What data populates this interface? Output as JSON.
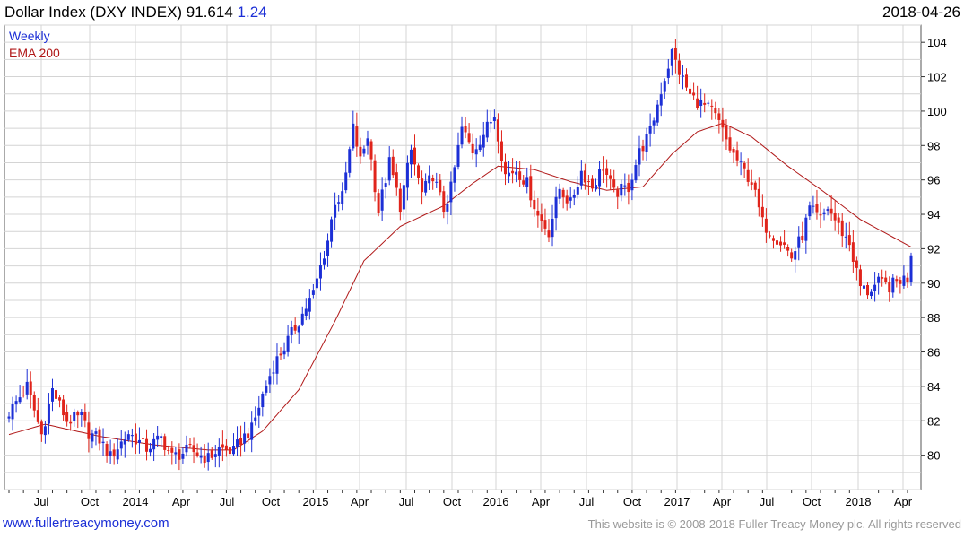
{
  "header": {
    "title": "Dollar Index (DXY INDEX) 91.614",
    "change": "1.24",
    "date": "2018-04-26"
  },
  "footer": {
    "site": "www.fullertreacymoney.com",
    "copyright": "This website is © 2008-2018 Fuller Treacy Money plc. All rights reserved"
  },
  "colors": {
    "up": "#1c2fd6",
    "down": "#e0241b",
    "ema": "#b01818",
    "grid": "#d4d4d4"
  },
  "chart_data": {
    "type": "candlestick",
    "frequency": "Weekly",
    "legend": [
      {
        "label": "Weekly",
        "color": "#1c2fd6"
      },
      {
        "label": "EMA 200",
        "color": "#b01818"
      }
    ],
    "legend_position": "top-left",
    "grid": true,
    "y_axis": {
      "side": "right",
      "range": [
        78,
        105
      ],
      "ticks": [
        80,
        82,
        84,
        86,
        88,
        90,
        92,
        94,
        96,
        98,
        100,
        102,
        104
      ]
    },
    "x_axis": {
      "ticks": [
        "Jul",
        "Oct",
        "2014",
        "Apr",
        "Jul",
        "Oct",
        "2015",
        "Apr",
        "Jul",
        "Oct",
        "2016",
        "Apr",
        "Jul",
        "Oct",
        "2017",
        "Apr",
        "Jul",
        "Oct",
        "2018",
        "Apr"
      ]
    },
    "weeks": 250,
    "close_anchors": [
      [
        0,
        82.5
      ],
      [
        5,
        84.0
      ],
      [
        9,
        81.2
      ],
      [
        12,
        83.8
      ],
      [
        16,
        82.0
      ],
      [
        20,
        82.2
      ],
      [
        22,
        81.3
      ],
      [
        25,
        80.9
      ],
      [
        28,
        79.9
      ],
      [
        33,
        81.3
      ],
      [
        38,
        80.4
      ],
      [
        42,
        81.0
      ],
      [
        45,
        79.9
      ],
      [
        50,
        80.3
      ],
      [
        55,
        79.8
      ],
      [
        58,
        80.4
      ],
      [
        62,
        80.2
      ],
      [
        64,
        80.9
      ],
      [
        67,
        81.5
      ],
      [
        70,
        83.5
      ],
      [
        73,
        85.2
      ],
      [
        76,
        86.3
      ],
      [
        80,
        87.8
      ],
      [
        84,
        89.4
      ],
      [
        88,
        92.5
      ],
      [
        90,
        94.8
      ],
      [
        92,
        95.0
      ],
      [
        95,
        99.0
      ],
      [
        97,
        97.1
      ],
      [
        99,
        98.6
      ],
      [
        102,
        94.2
      ],
      [
        105,
        97.0
      ],
      [
        108,
        94.5
      ],
      [
        111,
        97.7
      ],
      [
        114,
        95.2
      ],
      [
        117,
        96.3
      ],
      [
        120,
        94.3
      ],
      [
        122,
        95.5
      ],
      [
        125,
        99.0
      ],
      [
        128,
        97.7
      ],
      [
        131,
        98.7
      ],
      [
        134,
        99.8
      ],
      [
        137,
        96.3
      ],
      [
        140,
        96.6
      ],
      [
        143,
        95.8
      ],
      [
        146,
        93.9
      ],
      [
        149,
        93.0
      ],
      [
        152,
        95.5
      ],
      [
        155,
        94.6
      ],
      [
        158,
        96.5
      ],
      [
        161,
        95.6
      ],
      [
        164,
        96.8
      ],
      [
        167,
        95.2
      ],
      [
        171,
        95.6
      ],
      [
        174,
        97.6
      ],
      [
        177,
        98.8
      ],
      [
        180,
        101.2
      ],
      [
        183,
        103.4
      ],
      [
        185,
        102.3
      ],
      [
        188,
        100.9
      ],
      [
        191,
        100.4
      ],
      [
        194,
        100.0
      ],
      [
        196,
        99.3
      ],
      [
        199,
        97.8
      ],
      [
        202,
        96.8
      ],
      [
        205,
        95.9
      ],
      [
        208,
        93.5
      ],
      [
        211,
        92.8
      ],
      [
        214,
        92.2
      ],
      [
        216,
        91.5
      ],
      [
        219,
        92.8
      ],
      [
        221,
        94.3
      ],
      [
        224,
        93.7
      ],
      [
        226,
        94.4
      ],
      [
        229,
        93.3
      ],
      [
        232,
        92.3
      ],
      [
        235,
        89.8
      ],
      [
        237,
        89.5
      ],
      [
        240,
        90.0
      ],
      [
        243,
        89.8
      ],
      [
        246,
        90.2
      ],
      [
        248,
        90.3
      ],
      [
        249,
        91.6
      ]
    ],
    "ema200_anchors": [
      [
        0,
        81.2
      ],
      [
        10,
        81.8
      ],
      [
        25,
        81.1
      ],
      [
        40,
        80.6
      ],
      [
        55,
        80.3
      ],
      [
        62,
        80.3
      ],
      [
        70,
        81.4
      ],
      [
        80,
        83.8
      ],
      [
        90,
        87.8
      ],
      [
        98,
        91.3
      ],
      [
        108,
        93.3
      ],
      [
        120,
        94.5
      ],
      [
        128,
        95.8
      ],
      [
        135,
        96.8
      ],
      [
        145,
        96.6
      ],
      [
        155,
        95.9
      ],
      [
        165,
        95.4
      ],
      [
        175,
        95.6
      ],
      [
        183,
        97.5
      ],
      [
        190,
        98.8
      ],
      [
        197,
        99.3
      ],
      [
        205,
        98.5
      ],
      [
        215,
        96.8
      ],
      [
        225,
        95.3
      ],
      [
        235,
        93.7
      ],
      [
        249,
        92.1
      ]
    ],
    "last_close": 91.614,
    "last_change": 1.24
  }
}
